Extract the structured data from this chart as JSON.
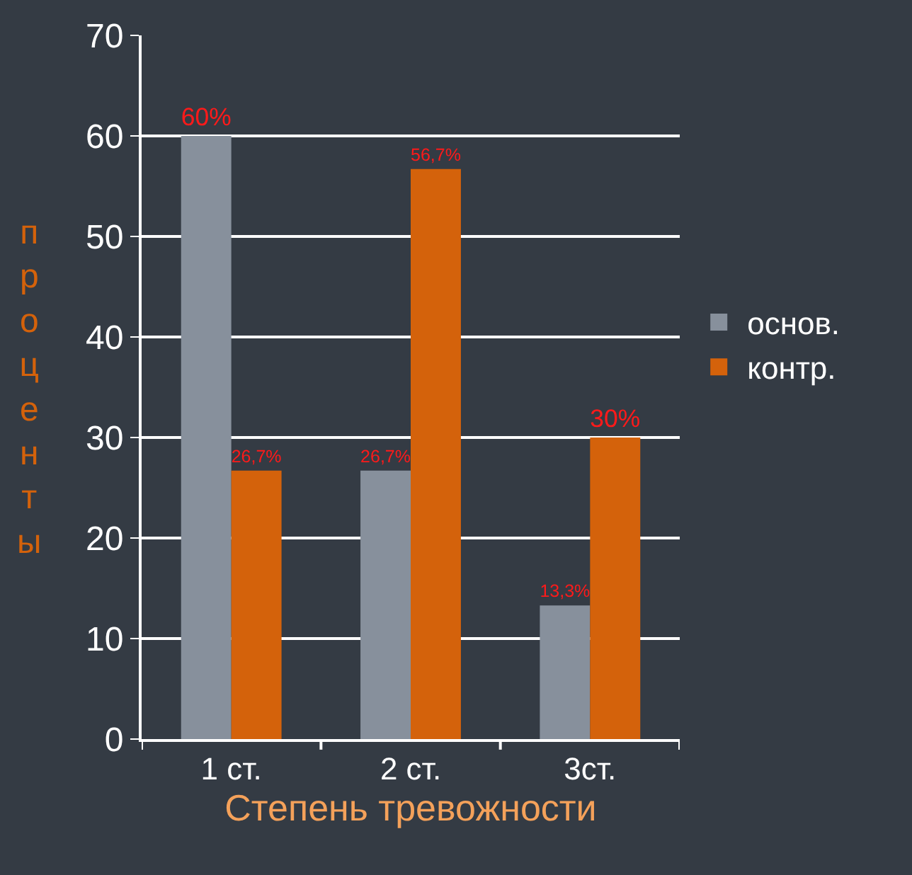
{
  "chart_data": {
    "type": "bar",
    "xlabel": "Степень тревожности",
    "ylabel": "проценты",
    "categories": [
      "1 ст.",
      "2 ст.",
      "3ст."
    ],
    "series": [
      {
        "name": "основ.",
        "color": "#87909c",
        "values": [
          60,
          26.7,
          13.3
        ],
        "value_labels": [
          "60%",
          "26,7%",
          "13,3%"
        ]
      },
      {
        "name": "контр.",
        "color": "#d4620b",
        "values": [
          26.7,
          56.7,
          30
        ],
        "value_labels": [
          "26,7%",
          "56,7%",
          "30%"
        ]
      }
    ],
    "ylim": [
      0,
      70
    ],
    "yticks": [
      0,
      10,
      20,
      30,
      40,
      50,
      60,
      70
    ],
    "grid": "y",
    "legend": "right"
  }
}
